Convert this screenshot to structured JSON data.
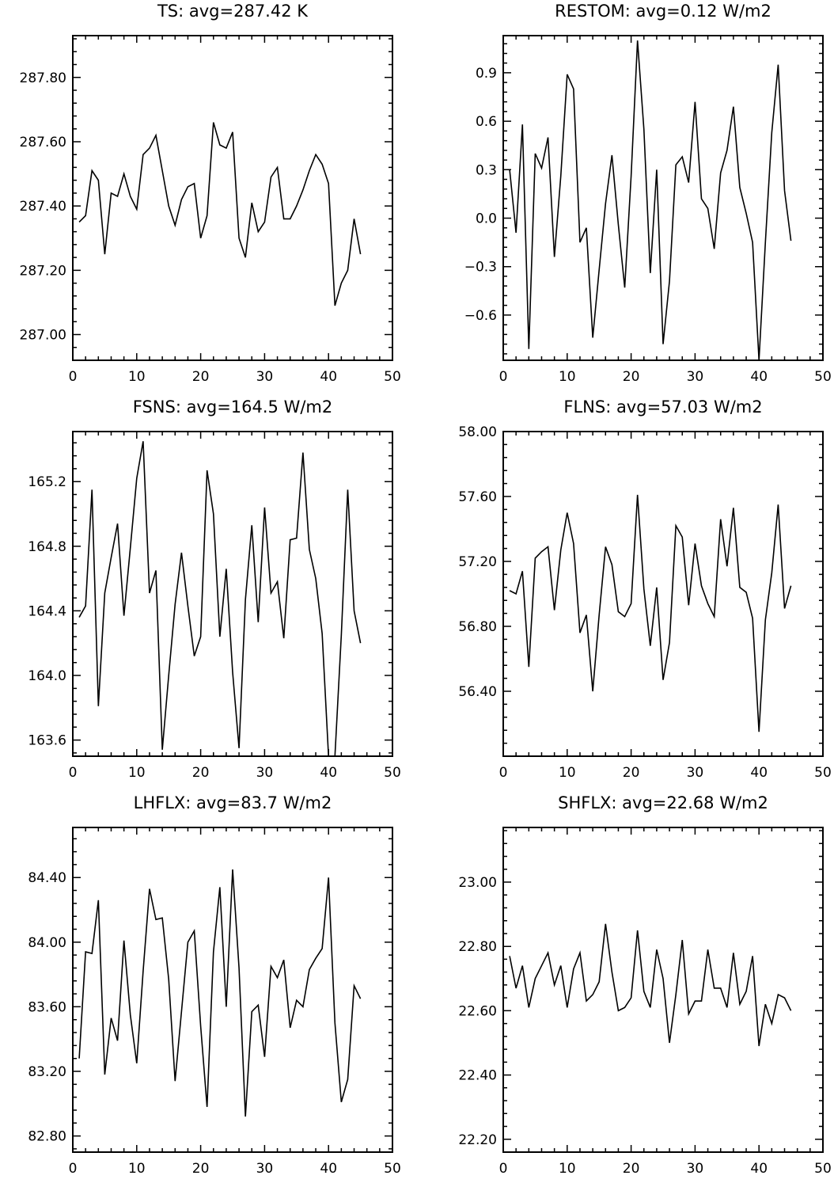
{
  "chart_data": [
    {
      "type": "line",
      "title": "TS: avg=287.42 K",
      "xlim": [
        0,
        50
      ],
      "ylim": [
        286.92,
        287.93
      ],
      "x_ticks": [
        "0",
        "10",
        "20",
        "30",
        "40",
        "50"
      ],
      "y_ticks": [
        "287.00",
        "287.20",
        "287.40",
        "287.60",
        "287.80"
      ],
      "y_tick_values": [
        287.0,
        287.2,
        287.4,
        287.6,
        287.8
      ],
      "y_minor_step": 0.04,
      "x": [
        1,
        2,
        3,
        4,
        5,
        6,
        7,
        8,
        9,
        10,
        11,
        12,
        13,
        14,
        15,
        16,
        17,
        18,
        19,
        20,
        21,
        22,
        23,
        24,
        25,
        26,
        27,
        28,
        29,
        30,
        31,
        32,
        33,
        34,
        35,
        36,
        37,
        38,
        39,
        40,
        41,
        42,
        43,
        44,
        45
      ],
      "values": [
        287.35,
        287.37,
        287.51,
        287.48,
        287.25,
        287.44,
        287.43,
        287.5,
        287.43,
        287.39,
        287.56,
        287.58,
        287.62,
        287.51,
        287.4,
        287.34,
        287.42,
        287.46,
        287.47,
        287.3,
        287.37,
        287.66,
        287.59,
        287.58,
        287.63,
        287.3,
        287.24,
        287.41,
        287.32,
        287.35,
        287.49,
        287.52,
        287.36,
        287.36,
        287.4,
        287.45,
        287.51,
        287.56,
        287.53,
        287.47,
        287.09,
        287.16,
        287.2,
        287.36,
        287.25
      ]
    },
    {
      "type": "line",
      "title": "RESTOM: avg=0.12 W/m2",
      "xlim": [
        0,
        50
      ],
      "ylim": [
        -0.88,
        1.13
      ],
      "x_ticks": [
        "0",
        "10",
        "20",
        "30",
        "40",
        "50"
      ],
      "y_ticks": [
        "−0.6",
        "−0.3",
        "0.0",
        "0.3",
        "0.6",
        "0.9"
      ],
      "y_tick_values": [
        -0.6,
        -0.3,
        0.0,
        0.3,
        0.6,
        0.9
      ],
      "y_minor_step": 0.06,
      "x": [
        1,
        2,
        3,
        4,
        5,
        6,
        7,
        8,
        9,
        10,
        11,
        12,
        13,
        14,
        15,
        16,
        17,
        18,
        19,
        20,
        21,
        22,
        23,
        24,
        25,
        26,
        27,
        28,
        29,
        30,
        31,
        32,
        33,
        34,
        35,
        36,
        37,
        38,
        39,
        40,
        41,
        42,
        43,
        44,
        45
      ],
      "values": [
        0.3,
        -0.09,
        0.58,
        -0.81,
        0.4,
        0.31,
        0.5,
        -0.24,
        0.26,
        0.89,
        0.8,
        -0.15,
        -0.06,
        -0.74,
        -0.32,
        0.09,
        0.39,
        -0.04,
        -0.43,
        0.26,
        1.1,
        0.55,
        -0.34,
        0.3,
        -0.78,
        -0.39,
        0.33,
        0.38,
        0.22,
        0.72,
        0.12,
        0.06,
        -0.19,
        0.28,
        0.42,
        0.69,
        0.19,
        0.03,
        -0.15,
        -0.88,
        -0.15,
        0.53,
        0.95,
        0.17,
        -0.14
      ]
    },
    {
      "type": "line",
      "title": "FSNS: avg=164.5 W/m2",
      "xlim": [
        0,
        50
      ],
      "ylim": [
        163.5,
        165.51
      ],
      "x_ticks": [
        "0",
        "10",
        "20",
        "30",
        "40",
        "50"
      ],
      "y_ticks": [
        "163.6",
        "164.0",
        "164.4",
        "164.8",
        "165.2"
      ],
      "y_tick_values": [
        163.6,
        164.0,
        164.4,
        164.8,
        165.2
      ],
      "y_minor_step": 0.08,
      "x": [
        1,
        2,
        3,
        4,
        5,
        6,
        7,
        8,
        9,
        10,
        11,
        12,
        13,
        14,
        15,
        16,
        17,
        18,
        19,
        20,
        21,
        22,
        23,
        24,
        25,
        26,
        27,
        28,
        29,
        30,
        31,
        32,
        33,
        34,
        35,
        36,
        37,
        38,
        39,
        40,
        41,
        42,
        43,
        44,
        45
      ],
      "values": [
        164.36,
        164.43,
        165.15,
        163.81,
        164.51,
        164.73,
        164.94,
        164.37,
        164.79,
        165.22,
        165.45,
        164.51,
        164.65,
        163.54,
        164.0,
        164.44,
        164.76,
        164.43,
        164.12,
        164.24,
        165.27,
        165.0,
        164.24,
        164.66,
        164.02,
        163.55,
        164.47,
        164.93,
        164.33,
        165.04,
        164.51,
        164.58,
        164.23,
        164.84,
        164.85,
        165.38,
        164.78,
        164.6,
        164.26,
        163.5,
        163.5,
        164.25,
        165.15,
        164.4,
        164.2
      ]
    },
    {
      "type": "line",
      "title": "FLNS: avg=57.03 W/m2",
      "xlim": [
        0,
        50
      ],
      "ylim": [
        56.0,
        58.0
      ],
      "x_ticks": [
        "0",
        "10",
        "20",
        "30",
        "40",
        "50"
      ],
      "y_ticks": [
        "56.40",
        "56.80",
        "57.20",
        "57.60",
        "58.00"
      ],
      "y_tick_values": [
        56.4,
        56.8,
        57.2,
        57.6,
        58.0
      ],
      "y_minor_step": 0.08,
      "x": [
        1,
        2,
        3,
        4,
        5,
        6,
        7,
        8,
        9,
        10,
        11,
        12,
        13,
        14,
        15,
        16,
        17,
        18,
        19,
        20,
        21,
        22,
        23,
        24,
        25,
        26,
        27,
        28,
        29,
        30,
        31,
        32,
        33,
        34,
        35,
        36,
        37,
        38,
        39,
        40,
        41,
        42,
        43,
        44,
        45
      ],
      "values": [
        57.02,
        57.0,
        57.14,
        56.55,
        57.22,
        57.26,
        57.29,
        56.9,
        57.27,
        57.5,
        57.31,
        56.76,
        56.87,
        56.4,
        56.87,
        57.29,
        57.18,
        56.89,
        56.86,
        56.94,
        57.61,
        57.03,
        56.68,
        57.04,
        56.47,
        56.7,
        57.42,
        57.35,
        56.93,
        57.31,
        57.05,
        56.94,
        56.86,
        57.46,
        57.17,
        57.53,
        57.04,
        57.01,
        56.85,
        56.15,
        56.84,
        57.13,
        57.55,
        56.91,
        57.05
      ]
    },
    {
      "type": "line",
      "title": "LHFLX: avg=83.7 W/m2",
      "xlim": [
        0,
        50
      ],
      "ylim": [
        82.7,
        84.71
      ],
      "x_ticks": [
        "0",
        "10",
        "20",
        "30",
        "40",
        "50"
      ],
      "y_ticks": [
        "82.80",
        "83.20",
        "83.60",
        "84.00",
        "84.40"
      ],
      "y_tick_values": [
        82.8,
        83.2,
        83.6,
        84.0,
        84.4
      ],
      "y_minor_step": 0.08,
      "x": [
        1,
        2,
        3,
        4,
        5,
        6,
        7,
        8,
        9,
        10,
        11,
        12,
        13,
        14,
        15,
        16,
        17,
        18,
        19,
        20,
        21,
        22,
        23,
        24,
        25,
        26,
        27,
        28,
        29,
        30,
        31,
        32,
        33,
        34,
        35,
        36,
        37,
        38,
        39,
        40,
        41,
        42,
        43,
        44,
        45
      ],
      "values": [
        83.28,
        83.94,
        83.93,
        84.26,
        83.18,
        83.53,
        83.39,
        84.01,
        83.55,
        83.25,
        83.82,
        84.33,
        84.14,
        84.15,
        83.77,
        83.14,
        83.57,
        84.0,
        84.07,
        83.48,
        82.98,
        83.94,
        84.34,
        83.6,
        84.45,
        83.84,
        82.92,
        83.57,
        83.61,
        83.29,
        83.85,
        83.78,
        83.89,
        83.47,
        83.64,
        83.6,
        83.83,
        83.9,
        83.96,
        84.4,
        83.5,
        83.01,
        83.15,
        83.73,
        83.65
      ]
    },
    {
      "type": "line",
      "title": "SHFLX: avg=22.68 W/m2",
      "xlim": [
        0,
        50
      ],
      "ylim": [
        22.16,
        23.17
      ],
      "x_ticks": [
        "0",
        "10",
        "20",
        "30",
        "40",
        "50"
      ],
      "y_ticks": [
        "22.20",
        "22.40",
        "22.60",
        "22.80",
        "23.00"
      ],
      "y_tick_values": [
        22.2,
        22.4,
        22.6,
        22.8,
        23.0
      ],
      "y_minor_step": 0.04,
      "x": [
        1,
        2,
        3,
        4,
        5,
        6,
        7,
        8,
        9,
        10,
        11,
        12,
        13,
        14,
        15,
        16,
        17,
        18,
        19,
        20,
        21,
        22,
        23,
        24,
        25,
        26,
        27,
        28,
        29,
        30,
        31,
        32,
        33,
        34,
        35,
        36,
        37,
        38,
        39,
        40,
        41,
        42,
        43,
        44,
        45
      ],
      "values": [
        22.77,
        22.67,
        22.74,
        22.61,
        22.7,
        22.74,
        22.78,
        22.68,
        22.74,
        22.61,
        22.73,
        22.78,
        22.63,
        22.65,
        22.69,
        22.87,
        22.72,
        22.6,
        22.61,
        22.64,
        22.85,
        22.66,
        22.61,
        22.79,
        22.7,
        22.5,
        22.65,
        22.82,
        22.59,
        22.63,
        22.63,
        22.79,
        22.67,
        22.67,
        22.61,
        22.78,
        22.62,
        22.66,
        22.77,
        22.49,
        22.62,
        22.56,
        22.65,
        22.64,
        22.6
      ]
    }
  ]
}
